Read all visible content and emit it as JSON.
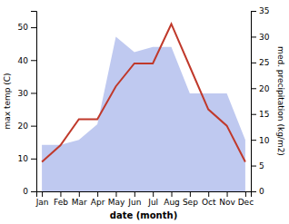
{
  "chart_data": {
    "type": "line",
    "categories": [
      "Jan",
      "Feb",
      "Mar",
      "Apr",
      "May",
      "Jun",
      "Jul",
      "Aug",
      "Sep",
      "Oct",
      "Nov",
      "Dec"
    ],
    "series": [
      {
        "type": "area",
        "axis": "y2",
        "color": "#bfc9f0",
        "values": [
          9,
          9,
          10,
          13,
          30,
          27,
          28,
          28,
          19,
          19,
          19,
          10
        ]
      },
      {
        "type": "line",
        "color": "#c0392b",
        "values": [
          9,
          14,
          22,
          22,
          32,
          39,
          39,
          51,
          38,
          25,
          20,
          9
        ]
      }
    ],
    "xlabel": "date (month)",
    "ylabel": "max temp (C)",
    "y2label": "med. precipitation (kg/m2)",
    "ylim": [
      0,
      55
    ],
    "yticks": [
      0,
      10,
      20,
      30,
      40,
      50
    ],
    "y2lim": [
      0,
      35
    ],
    "y2ticks": [
      0,
      5,
      10,
      15,
      20,
      25,
      30,
      35
    ],
    "grid": false
  }
}
